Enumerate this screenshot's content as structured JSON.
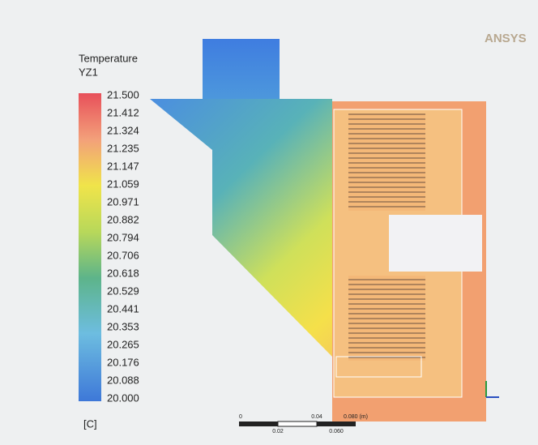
{
  "logo": "ANSYS",
  "legend": {
    "title": "Temperature",
    "subtitle": "YZ1",
    "labels": [
      "21.500",
      "21.412",
      "21.324",
      "21.235",
      "21.147",
      "21.059",
      "20.971",
      "20.882",
      "20.794",
      "20.706",
      "20.618",
      "20.529",
      "20.441",
      "20.353",
      "20.265",
      "20.176",
      "20.088",
      "20.000"
    ],
    "unit": "[C]"
  },
  "scale_bar": {
    "labels": [
      "0",
      "0.02",
      "0.04",
      "0.060",
      "0.080 (m)"
    ]
  }
}
